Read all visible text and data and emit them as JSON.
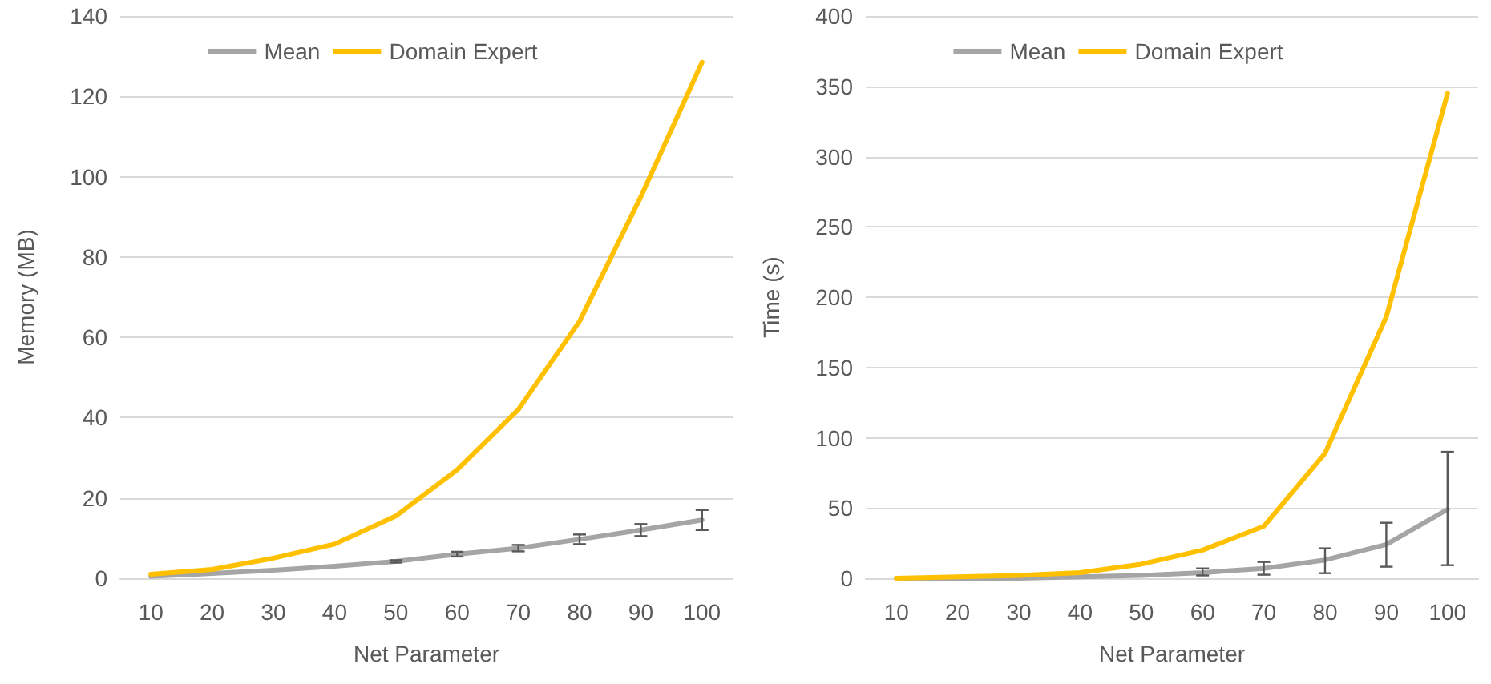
{
  "chart_data": [
    {
      "type": "line",
      "xlabel": "Net Parameter",
      "ylabel": "Memory (MB)",
      "categories": [
        "10",
        "20",
        "30",
        "40",
        "50",
        "60",
        "70",
        "80",
        "90",
        "100"
      ],
      "ylim": [
        0,
        140
      ],
      "yticks": [
        0,
        20,
        40,
        60,
        80,
        100,
        120,
        140
      ],
      "grid": "y",
      "legend": "top",
      "marker": "none",
      "series": [
        {
          "name": "Mean",
          "color": "#a5a5a5",
          "values": [
            0.5,
            1.2,
            2,
            3,
            4.2,
            6,
            7.5,
            9.7,
            12,
            14.5
          ],
          "errors": [
            null,
            null,
            null,
            null,
            0.3,
            0.6,
            0.8,
            1.2,
            1.5,
            2.5
          ]
        },
        {
          "name": "Domain Expert",
          "color": "#ffc000",
          "values": [
            1,
            2.2,
            5,
            8.5,
            15.5,
            27,
            42,
            64,
            95,
            128.5
          ]
        }
      ]
    },
    {
      "type": "line",
      "xlabel": "Net Parameter",
      "ylabel": "Time (s)",
      "categories": [
        "10",
        "20",
        "30",
        "40",
        "50",
        "60",
        "70",
        "80",
        "90",
        "100"
      ],
      "ylim": [
        0,
        400
      ],
      "yticks": [
        0,
        50,
        100,
        150,
        200,
        250,
        300,
        350,
        400
      ],
      "grid": "y",
      "legend": "top",
      "marker": "none",
      "series": [
        {
          "name": "Mean",
          "color": "#a5a5a5",
          "values": [
            0,
            0,
            0,
            1,
            2,
            4,
            7,
            13,
            24,
            49
          ],
          "errors": [
            null,
            null,
            null,
            null,
            null,
            [
              2,
              7
            ],
            [
              2.5,
              11.6
            ],
            [
              3.6,
              21.3
            ],
            [
              8.2,
              39.5
            ],
            [
              9.3,
              90
            ]
          ]
        },
        {
          "name": "Domain Expert",
          "color": "#ffc000",
          "values": [
            0,
            1,
            2,
            4,
            10,
            20,
            37,
            89,
            186,
            345
          ]
        }
      ]
    }
  ]
}
